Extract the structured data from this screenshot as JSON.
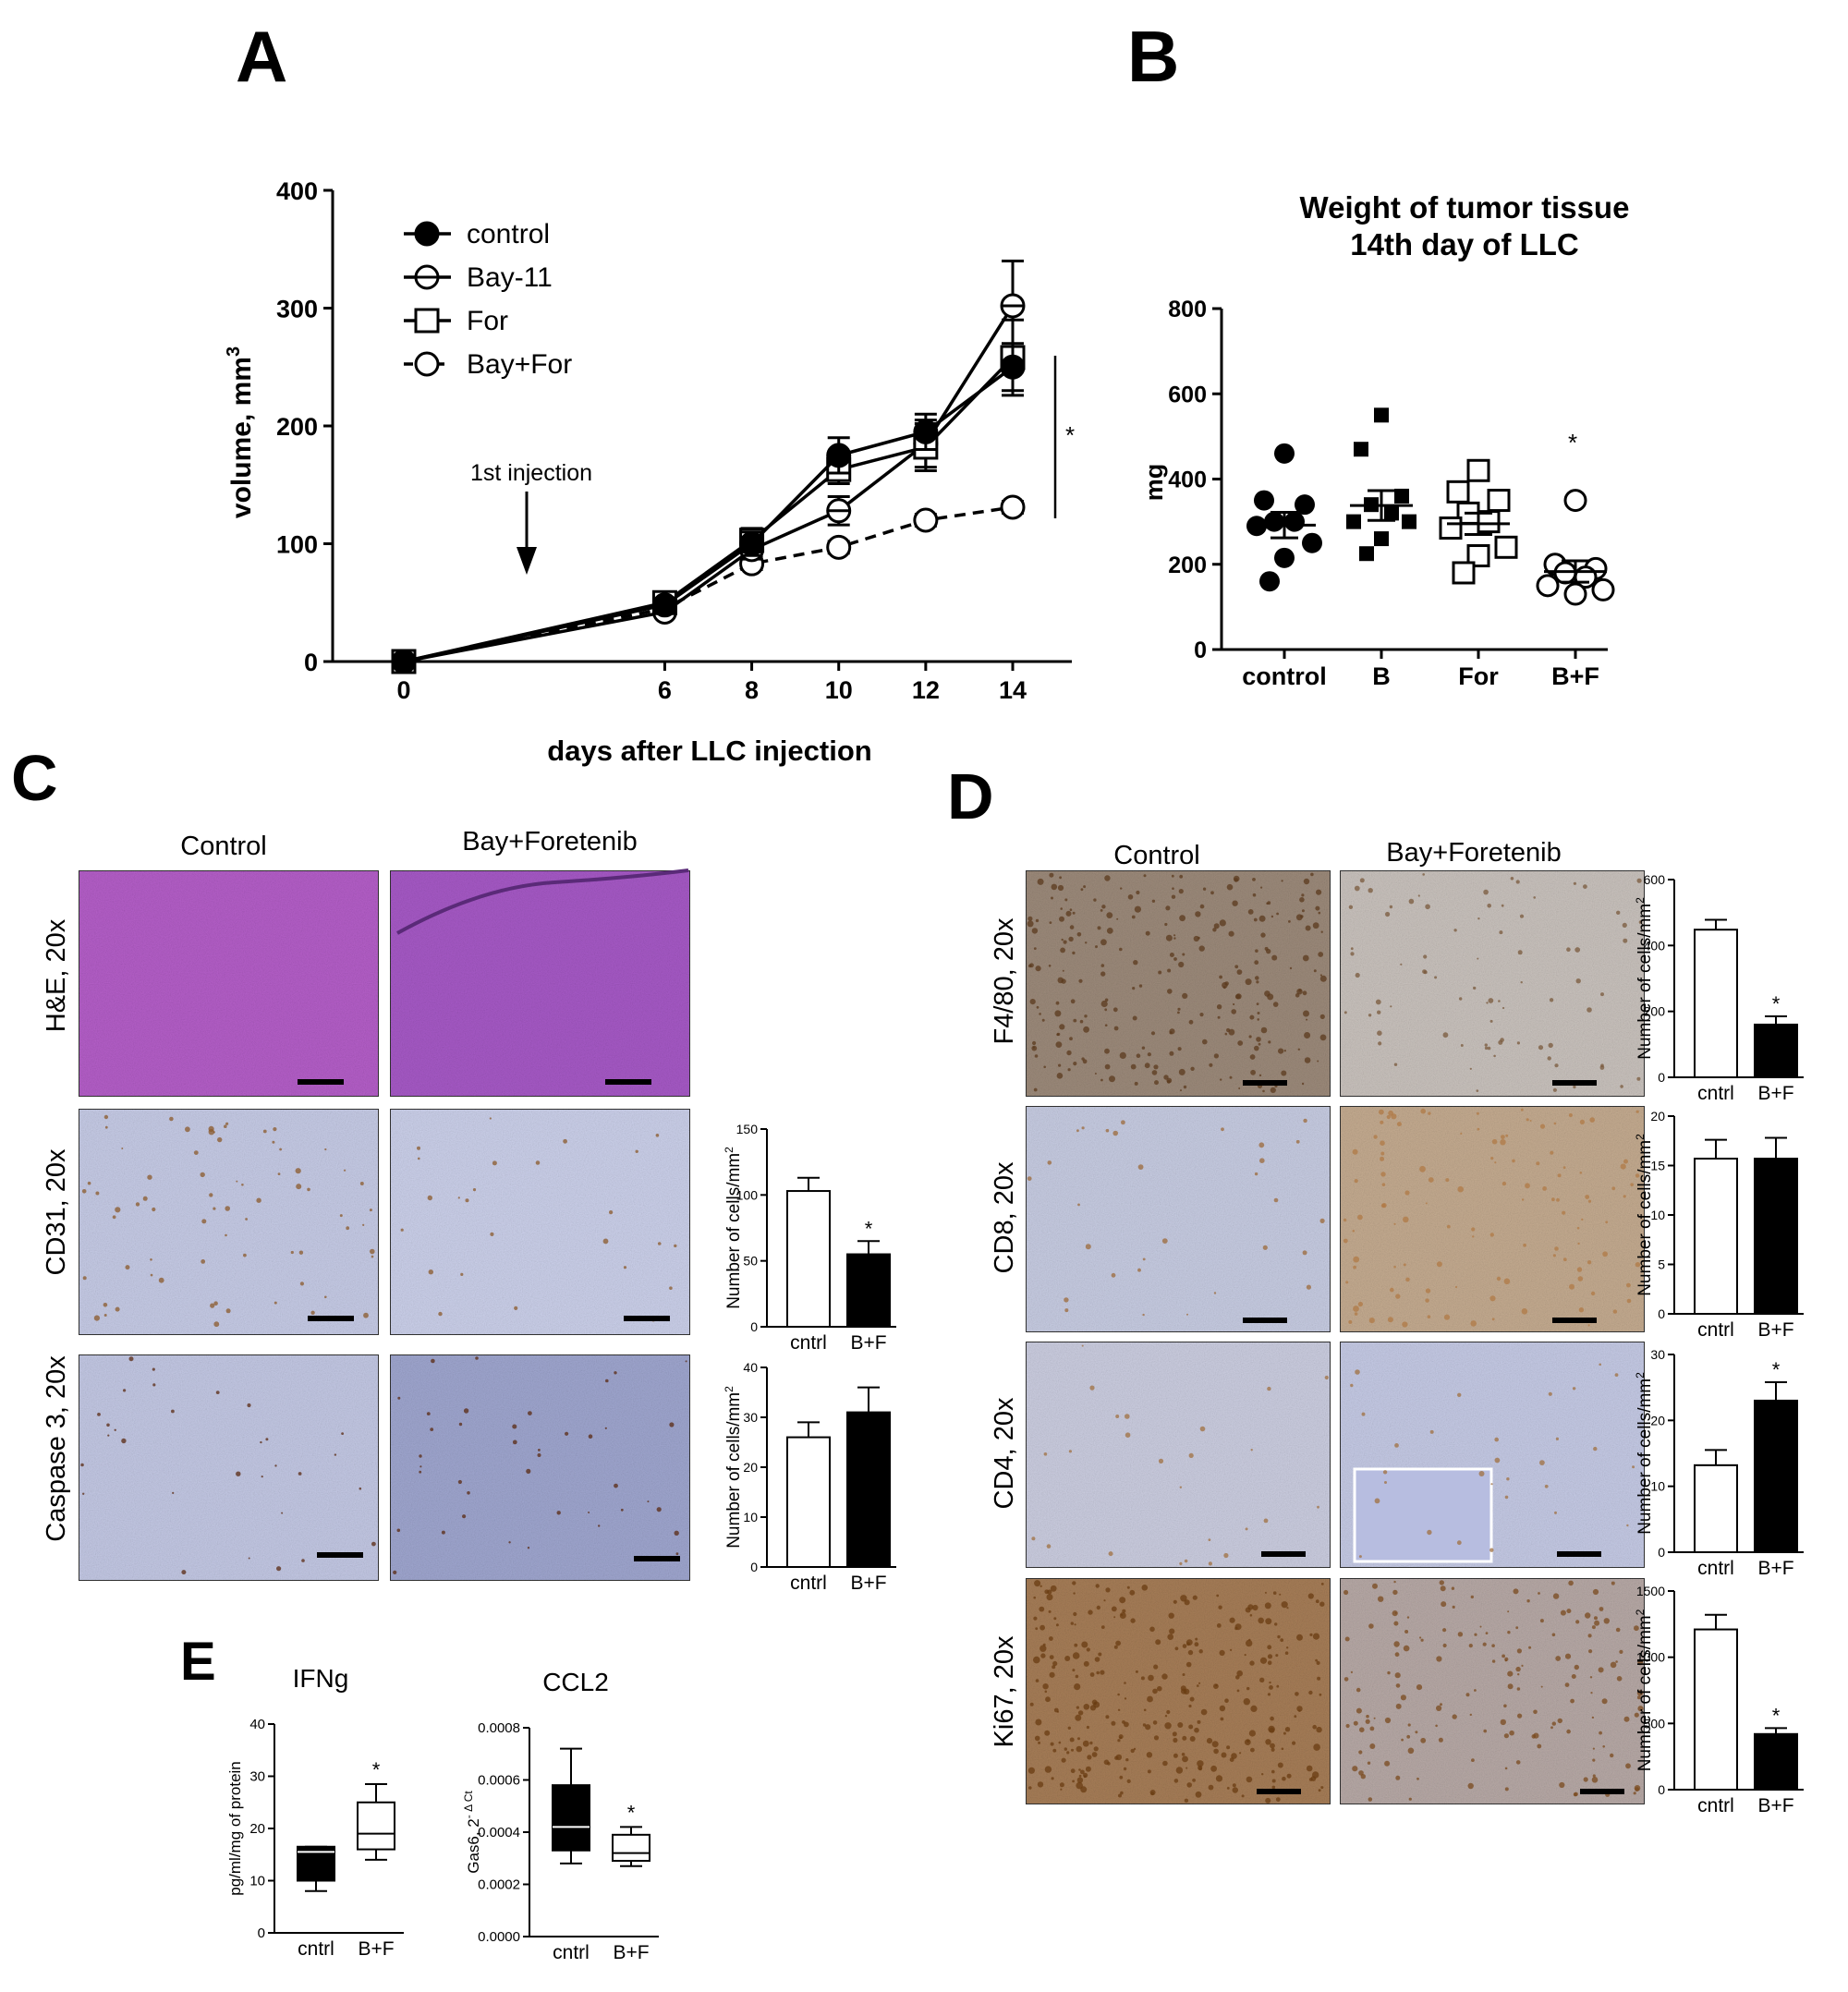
{
  "panels": {
    "a": "A",
    "b": "B",
    "c": "C",
    "d": "D",
    "e": "E"
  },
  "panel_c": {
    "columns": [
      "Control",
      "Bay+Foretenib"
    ],
    "rows": [
      "H&E, 20x",
      "CD31, 20x",
      "Caspase 3, 20x"
    ],
    "image_colors": {
      "he": "#b45ec8",
      "ihc": "#c6cbe6",
      "brown": "#8b5a2b"
    }
  },
  "panel_d": {
    "columns": [
      "Control",
      "Bay+Foretenib"
    ],
    "rows": [
      "F4/80, 20x",
      "CD8, 20x",
      "CD4, 20x",
      "Ki67, 20x"
    ]
  },
  "chart_data": [
    {
      "id": "A",
      "type": "line",
      "title": "",
      "xlabel": "days after LLC injection",
      "ylabel": "volume, mm3",
      "ylabel_base": "volume, mm",
      "ylabel_sup": "3",
      "x": [
        0,
        6,
        8,
        10,
        12,
        14
      ],
      "xticks": [
        "0",
        "6",
        "8",
        "10",
        "12",
        "14"
      ],
      "yticks": [
        "0",
        "100",
        "200",
        "300",
        "400"
      ],
      "ylim": [
        0,
        400
      ],
      "series": [
        {
          "name": "control",
          "marker": "filled-circle",
          "line": "solid",
          "values": [
            0,
            48,
            100,
            175,
            195,
            250
          ],
          "err": [
            0,
            3,
            10,
            15,
            15,
            20
          ]
        },
        {
          "name": "Bay-11",
          "marker": "half-circle",
          "line": "solid",
          "values": [
            0,
            42,
            95,
            128,
            185,
            302
          ],
          "err": [
            0,
            3,
            8,
            12,
            20,
            38
          ]
        },
        {
          "name": "For",
          "marker": "open-square",
          "line": "solid",
          "values": [
            0,
            50,
            103,
            163,
            182,
            258
          ],
          "err": [
            0,
            3,
            10,
            12,
            20,
            32
          ]
        },
        {
          "name": "Bay+For",
          "marker": "open-circle",
          "line": "dashed",
          "values": [
            0,
            45,
            83,
            97,
            120,
            131
          ],
          "err": [
            0,
            2,
            5,
            5,
            5,
            5
          ]
        }
      ],
      "annotation": "1st injection",
      "annotation_x": 6,
      "sig": "*",
      "legend_position": "top-left"
    },
    {
      "id": "B",
      "type": "scatter",
      "title": "Weight of tumor tissue",
      "subtitle": "14th day of LLC",
      "ylabel": "mg",
      "categories": [
        "control",
        "B",
        "For",
        "B+F"
      ],
      "yticks": [
        "0",
        "200",
        "400",
        "600",
        "800"
      ],
      "ylim": [
        0,
        800
      ],
      "groups": [
        {
          "name": "control",
          "marker": "filled-circle",
          "values": [
            460,
            350,
            340,
            300,
            300,
            290,
            250,
            215,
            160
          ],
          "mean": 292,
          "sem": 30
        },
        {
          "name": "B",
          "marker": "filled-square",
          "values": [
            550,
            470,
            360,
            340,
            320,
            300,
            300,
            260,
            225
          ],
          "mean": 338,
          "sem": 35
        },
        {
          "name": "For",
          "marker": "open-square",
          "values": [
            420,
            370,
            350,
            320,
            300,
            285,
            240,
            220,
            180
          ],
          "mean": 295,
          "sem": 25
        },
        {
          "name": "B+F",
          "marker": "open-circle",
          "values": [
            350,
            200,
            190,
            180,
            170,
            150,
            140,
            130
          ],
          "mean": 183,
          "sem": 25
        }
      ],
      "sig": "*"
    },
    {
      "id": "C-CD31",
      "type": "bar",
      "ylabel": "Number of cells/mm",
      "ylabel_sup": "2",
      "categories": [
        "cntrl",
        "B+F"
      ],
      "values": [
        103,
        55
      ],
      "err": [
        10,
        10
      ],
      "ylim": [
        0,
        150
      ],
      "yticks": [
        "0",
        "50",
        "100",
        "150"
      ],
      "sig": "*"
    },
    {
      "id": "C-Casp3",
      "type": "bar",
      "ylabel": "Number of cells/mm",
      "ylabel_sup": "2",
      "categories": [
        "cntrl",
        "B+F"
      ],
      "values": [
        26,
        31
      ],
      "err": [
        3,
        5
      ],
      "ylim": [
        0,
        40
      ],
      "yticks": [
        "0",
        "10",
        "20",
        "30",
        "40"
      ],
      "sig": ""
    },
    {
      "id": "D-F480",
      "type": "bar",
      "ylabel": "Number of cells/mm",
      "ylabel_sup": "2",
      "categories": [
        "cntrl",
        "B+F"
      ],
      "values": [
        448,
        160
      ],
      "err": [
        30,
        25
      ],
      "ylim": [
        0,
        600
      ],
      "yticks": [
        "0",
        "200",
        "400",
        "600"
      ],
      "sig": "*"
    },
    {
      "id": "D-CD8",
      "type": "bar",
      "ylabel": "Number of cells/mm",
      "ylabel_sup": "2",
      "categories": [
        "cntrl",
        "B+F"
      ],
      "values": [
        15.7,
        15.7
      ],
      "err": [
        1.9,
        2.1
      ],
      "ylim": [
        0,
        20
      ],
      "yticks": [
        "0",
        "5",
        "10",
        "15",
        "20"
      ],
      "sig": ""
    },
    {
      "id": "D-CD4",
      "type": "bar",
      "ylabel": "Number of cells/mm",
      "ylabel_sup": "2",
      "categories": [
        "cntrl",
        "B+F"
      ],
      "values": [
        13.2,
        23
      ],
      "err": [
        2.3,
        2.8
      ],
      "ylim": [
        0,
        30
      ],
      "yticks": [
        "0",
        "10",
        "20",
        "30"
      ],
      "sig": "*"
    },
    {
      "id": "D-Ki67",
      "type": "bar",
      "ylabel": "Number of cells/mm",
      "ylabel_sup": "2",
      "categories": [
        "cntrl",
        "B+F"
      ],
      "values": [
        1210,
        420
      ],
      "err": [
        110,
        45
      ],
      "ylim": [
        0,
        1500
      ],
      "yticks": [
        "0",
        "500",
        "1000",
        "1500"
      ],
      "sig": "*"
    },
    {
      "id": "E-IFNg",
      "type": "boxplot",
      "title": "IFNg",
      "ylabel": "pg/ml/mg of protein",
      "categories": [
        "cntrl",
        "B+F"
      ],
      "boxes": [
        {
          "min": 8,
          "q1": 10,
          "median": 15.5,
          "q3": 16.5,
          "max": 16.5
        },
        {
          "min": 14,
          "q1": 16,
          "median": 19,
          "q3": 25,
          "max": 28.5
        }
      ],
      "ylim": [
        0,
        40
      ],
      "yticks": [
        "0",
        "10",
        "20",
        "30",
        "40"
      ],
      "sig": "*"
    },
    {
      "id": "E-CCL2",
      "type": "boxplot",
      "title": "CCL2",
      "ylabel": "Gas6, 2- Δ Ct",
      "ylabel_base": "Gas6, 2",
      "ylabel_sup": "- Δ Ct",
      "categories": [
        "cntrl",
        "B+F"
      ],
      "boxes": [
        {
          "min": 0.00028,
          "q1": 0.00033,
          "median": 0.00042,
          "q3": 0.00058,
          "max": 0.00072
        },
        {
          "min": 0.00027,
          "q1": 0.00029,
          "median": 0.00032,
          "q3": 0.00039,
          "max": 0.00042
        }
      ],
      "ylim": [
        0,
        0.0008
      ],
      "yticks": [
        "0.0000",
        "0.0002",
        "0.0004",
        "0.0006",
        "0.0008"
      ],
      "sig": "*"
    }
  ]
}
